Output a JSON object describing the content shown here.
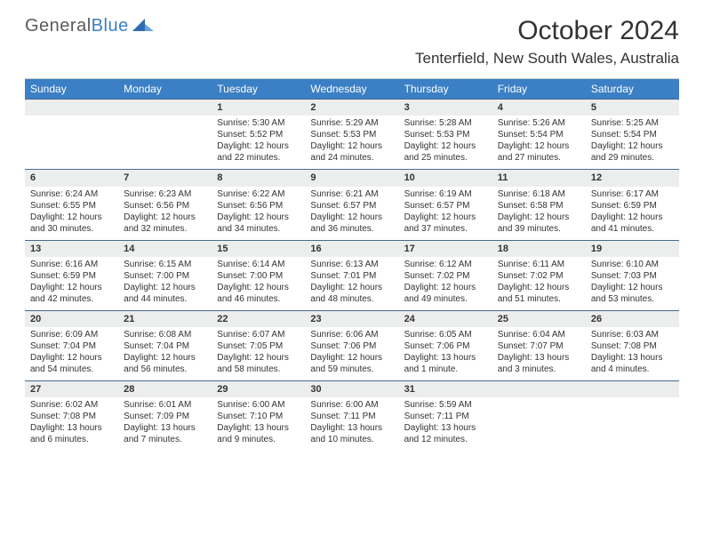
{
  "brand": {
    "part1": "General",
    "part2": "Blue"
  },
  "title": "October 2024",
  "location": "Tenterfield, New South Wales, Australia",
  "colors": {
    "header_bg": "#3b7fc4",
    "daynum_bg": "#eceded",
    "week_border": "#4a6a8a",
    "text": "#333333"
  },
  "day_names": [
    "Sunday",
    "Monday",
    "Tuesday",
    "Wednesday",
    "Thursday",
    "Friday",
    "Saturday"
  ],
  "weeks": [
    [
      {
        "n": "",
        "sr": "",
        "ss": "",
        "dl": ""
      },
      {
        "n": "",
        "sr": "",
        "ss": "",
        "dl": ""
      },
      {
        "n": "1",
        "sr": "Sunrise: 5:30 AM",
        "ss": "Sunset: 5:52 PM",
        "dl": "Daylight: 12 hours and 22 minutes."
      },
      {
        "n": "2",
        "sr": "Sunrise: 5:29 AM",
        "ss": "Sunset: 5:53 PM",
        "dl": "Daylight: 12 hours and 24 minutes."
      },
      {
        "n": "3",
        "sr": "Sunrise: 5:28 AM",
        "ss": "Sunset: 5:53 PM",
        "dl": "Daylight: 12 hours and 25 minutes."
      },
      {
        "n": "4",
        "sr": "Sunrise: 5:26 AM",
        "ss": "Sunset: 5:54 PM",
        "dl": "Daylight: 12 hours and 27 minutes."
      },
      {
        "n": "5",
        "sr": "Sunrise: 5:25 AM",
        "ss": "Sunset: 5:54 PM",
        "dl": "Daylight: 12 hours and 29 minutes."
      }
    ],
    [
      {
        "n": "6",
        "sr": "Sunrise: 6:24 AM",
        "ss": "Sunset: 6:55 PM",
        "dl": "Daylight: 12 hours and 30 minutes."
      },
      {
        "n": "7",
        "sr": "Sunrise: 6:23 AM",
        "ss": "Sunset: 6:56 PM",
        "dl": "Daylight: 12 hours and 32 minutes."
      },
      {
        "n": "8",
        "sr": "Sunrise: 6:22 AM",
        "ss": "Sunset: 6:56 PM",
        "dl": "Daylight: 12 hours and 34 minutes."
      },
      {
        "n": "9",
        "sr": "Sunrise: 6:21 AM",
        "ss": "Sunset: 6:57 PM",
        "dl": "Daylight: 12 hours and 36 minutes."
      },
      {
        "n": "10",
        "sr": "Sunrise: 6:19 AM",
        "ss": "Sunset: 6:57 PM",
        "dl": "Daylight: 12 hours and 37 minutes."
      },
      {
        "n": "11",
        "sr": "Sunrise: 6:18 AM",
        "ss": "Sunset: 6:58 PM",
        "dl": "Daylight: 12 hours and 39 minutes."
      },
      {
        "n": "12",
        "sr": "Sunrise: 6:17 AM",
        "ss": "Sunset: 6:59 PM",
        "dl": "Daylight: 12 hours and 41 minutes."
      }
    ],
    [
      {
        "n": "13",
        "sr": "Sunrise: 6:16 AM",
        "ss": "Sunset: 6:59 PM",
        "dl": "Daylight: 12 hours and 42 minutes."
      },
      {
        "n": "14",
        "sr": "Sunrise: 6:15 AM",
        "ss": "Sunset: 7:00 PM",
        "dl": "Daylight: 12 hours and 44 minutes."
      },
      {
        "n": "15",
        "sr": "Sunrise: 6:14 AM",
        "ss": "Sunset: 7:00 PM",
        "dl": "Daylight: 12 hours and 46 minutes."
      },
      {
        "n": "16",
        "sr": "Sunrise: 6:13 AM",
        "ss": "Sunset: 7:01 PM",
        "dl": "Daylight: 12 hours and 48 minutes."
      },
      {
        "n": "17",
        "sr": "Sunrise: 6:12 AM",
        "ss": "Sunset: 7:02 PM",
        "dl": "Daylight: 12 hours and 49 minutes."
      },
      {
        "n": "18",
        "sr": "Sunrise: 6:11 AM",
        "ss": "Sunset: 7:02 PM",
        "dl": "Daylight: 12 hours and 51 minutes."
      },
      {
        "n": "19",
        "sr": "Sunrise: 6:10 AM",
        "ss": "Sunset: 7:03 PM",
        "dl": "Daylight: 12 hours and 53 minutes."
      }
    ],
    [
      {
        "n": "20",
        "sr": "Sunrise: 6:09 AM",
        "ss": "Sunset: 7:04 PM",
        "dl": "Daylight: 12 hours and 54 minutes."
      },
      {
        "n": "21",
        "sr": "Sunrise: 6:08 AM",
        "ss": "Sunset: 7:04 PM",
        "dl": "Daylight: 12 hours and 56 minutes."
      },
      {
        "n": "22",
        "sr": "Sunrise: 6:07 AM",
        "ss": "Sunset: 7:05 PM",
        "dl": "Daylight: 12 hours and 58 minutes."
      },
      {
        "n": "23",
        "sr": "Sunrise: 6:06 AM",
        "ss": "Sunset: 7:06 PM",
        "dl": "Daylight: 12 hours and 59 minutes."
      },
      {
        "n": "24",
        "sr": "Sunrise: 6:05 AM",
        "ss": "Sunset: 7:06 PM",
        "dl": "Daylight: 13 hours and 1 minute."
      },
      {
        "n": "25",
        "sr": "Sunrise: 6:04 AM",
        "ss": "Sunset: 7:07 PM",
        "dl": "Daylight: 13 hours and 3 minutes."
      },
      {
        "n": "26",
        "sr": "Sunrise: 6:03 AM",
        "ss": "Sunset: 7:08 PM",
        "dl": "Daylight: 13 hours and 4 minutes."
      }
    ],
    [
      {
        "n": "27",
        "sr": "Sunrise: 6:02 AM",
        "ss": "Sunset: 7:08 PM",
        "dl": "Daylight: 13 hours and 6 minutes."
      },
      {
        "n": "28",
        "sr": "Sunrise: 6:01 AM",
        "ss": "Sunset: 7:09 PM",
        "dl": "Daylight: 13 hours and 7 minutes."
      },
      {
        "n": "29",
        "sr": "Sunrise: 6:00 AM",
        "ss": "Sunset: 7:10 PM",
        "dl": "Daylight: 13 hours and 9 minutes."
      },
      {
        "n": "30",
        "sr": "Sunrise: 6:00 AM",
        "ss": "Sunset: 7:11 PM",
        "dl": "Daylight: 13 hours and 10 minutes."
      },
      {
        "n": "31",
        "sr": "Sunrise: 5:59 AM",
        "ss": "Sunset: 7:11 PM",
        "dl": "Daylight: 13 hours and 12 minutes."
      },
      {
        "n": "",
        "sr": "",
        "ss": "",
        "dl": ""
      },
      {
        "n": "",
        "sr": "",
        "ss": "",
        "dl": ""
      }
    ]
  ]
}
